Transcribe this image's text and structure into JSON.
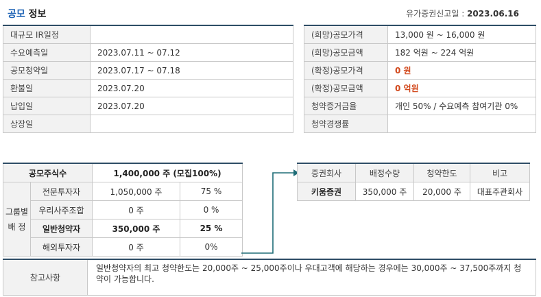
{
  "header": {
    "title_highlight": "공모",
    "title_rest": "정보",
    "report_date_label": "유가증권신고일 :",
    "report_date_value": "2023.06.16"
  },
  "schedule": [
    {
      "label": "대규모 IR일정",
      "value": ""
    },
    {
      "label": "수요예측일",
      "value": "2023.07.11 ~ 07.12"
    },
    {
      "label": "공모청약일",
      "value": "2023.07.17 ~ 07.18"
    },
    {
      "label": "환불일",
      "value": "2023.07.20"
    },
    {
      "label": "납입일",
      "value": "2023.07.20"
    },
    {
      "label": "상장일",
      "value": ""
    }
  ],
  "pricing": [
    {
      "label": "(희망)공모가격",
      "value": "13,000 원 ~ 16,000 원"
    },
    {
      "label": "(희망)공모금액",
      "value": "182 억원  ~ 224 억원"
    },
    {
      "label": "(확정)공모가격",
      "value": "0 원"
    },
    {
      "label": "(확정)공모금액",
      "value": "0 억원"
    },
    {
      "label": "청약증거금율",
      "value": "개인 50% / 수요예측 참여기관 0%"
    },
    {
      "label": "청약경쟁률",
      "value": ""
    }
  ],
  "allocation": {
    "total_label": "공모주식수",
    "total_value": "1,400,000 주 (모집100%)",
    "group_label_1": "그룹별",
    "group_label_2": "배 정",
    "rows": [
      {
        "name": "전문투자자",
        "shares": "1,050,000 주",
        "pct": "75 %"
      },
      {
        "name": "우리사주조합",
        "shares": "0 주",
        "pct": "0 %"
      },
      {
        "name": "일반청약자",
        "shares": "350,000 주",
        "pct": "25 %"
      },
      {
        "name": "해외투자자",
        "shares": "0 주",
        "pct": "0%"
      }
    ]
  },
  "underwriters": {
    "headers": [
      "증권회사",
      "배정수량",
      "청약한도",
      "비고"
    ],
    "rows": [
      {
        "company": "키움증권",
        "quantity": "350,000 주",
        "limit": "20,000 주",
        "note": "대표주관회사"
      }
    ]
  },
  "remarks": {
    "label": "참고사항",
    "text": "일반청약자의 최고 청약한도는 20,000주 ~ 25,000주이나 우대고객에 해당하는 경우에는 30,000주 ~ 37,500주까지 청약이 가능합니다."
  },
  "colors": {
    "accent_blue": "#1e63b5",
    "border_dark": "#2e4d66",
    "connector_teal": "#1f6d77",
    "highlight_red": "#d2491d",
    "label_bg": "#f2f2f2"
  }
}
